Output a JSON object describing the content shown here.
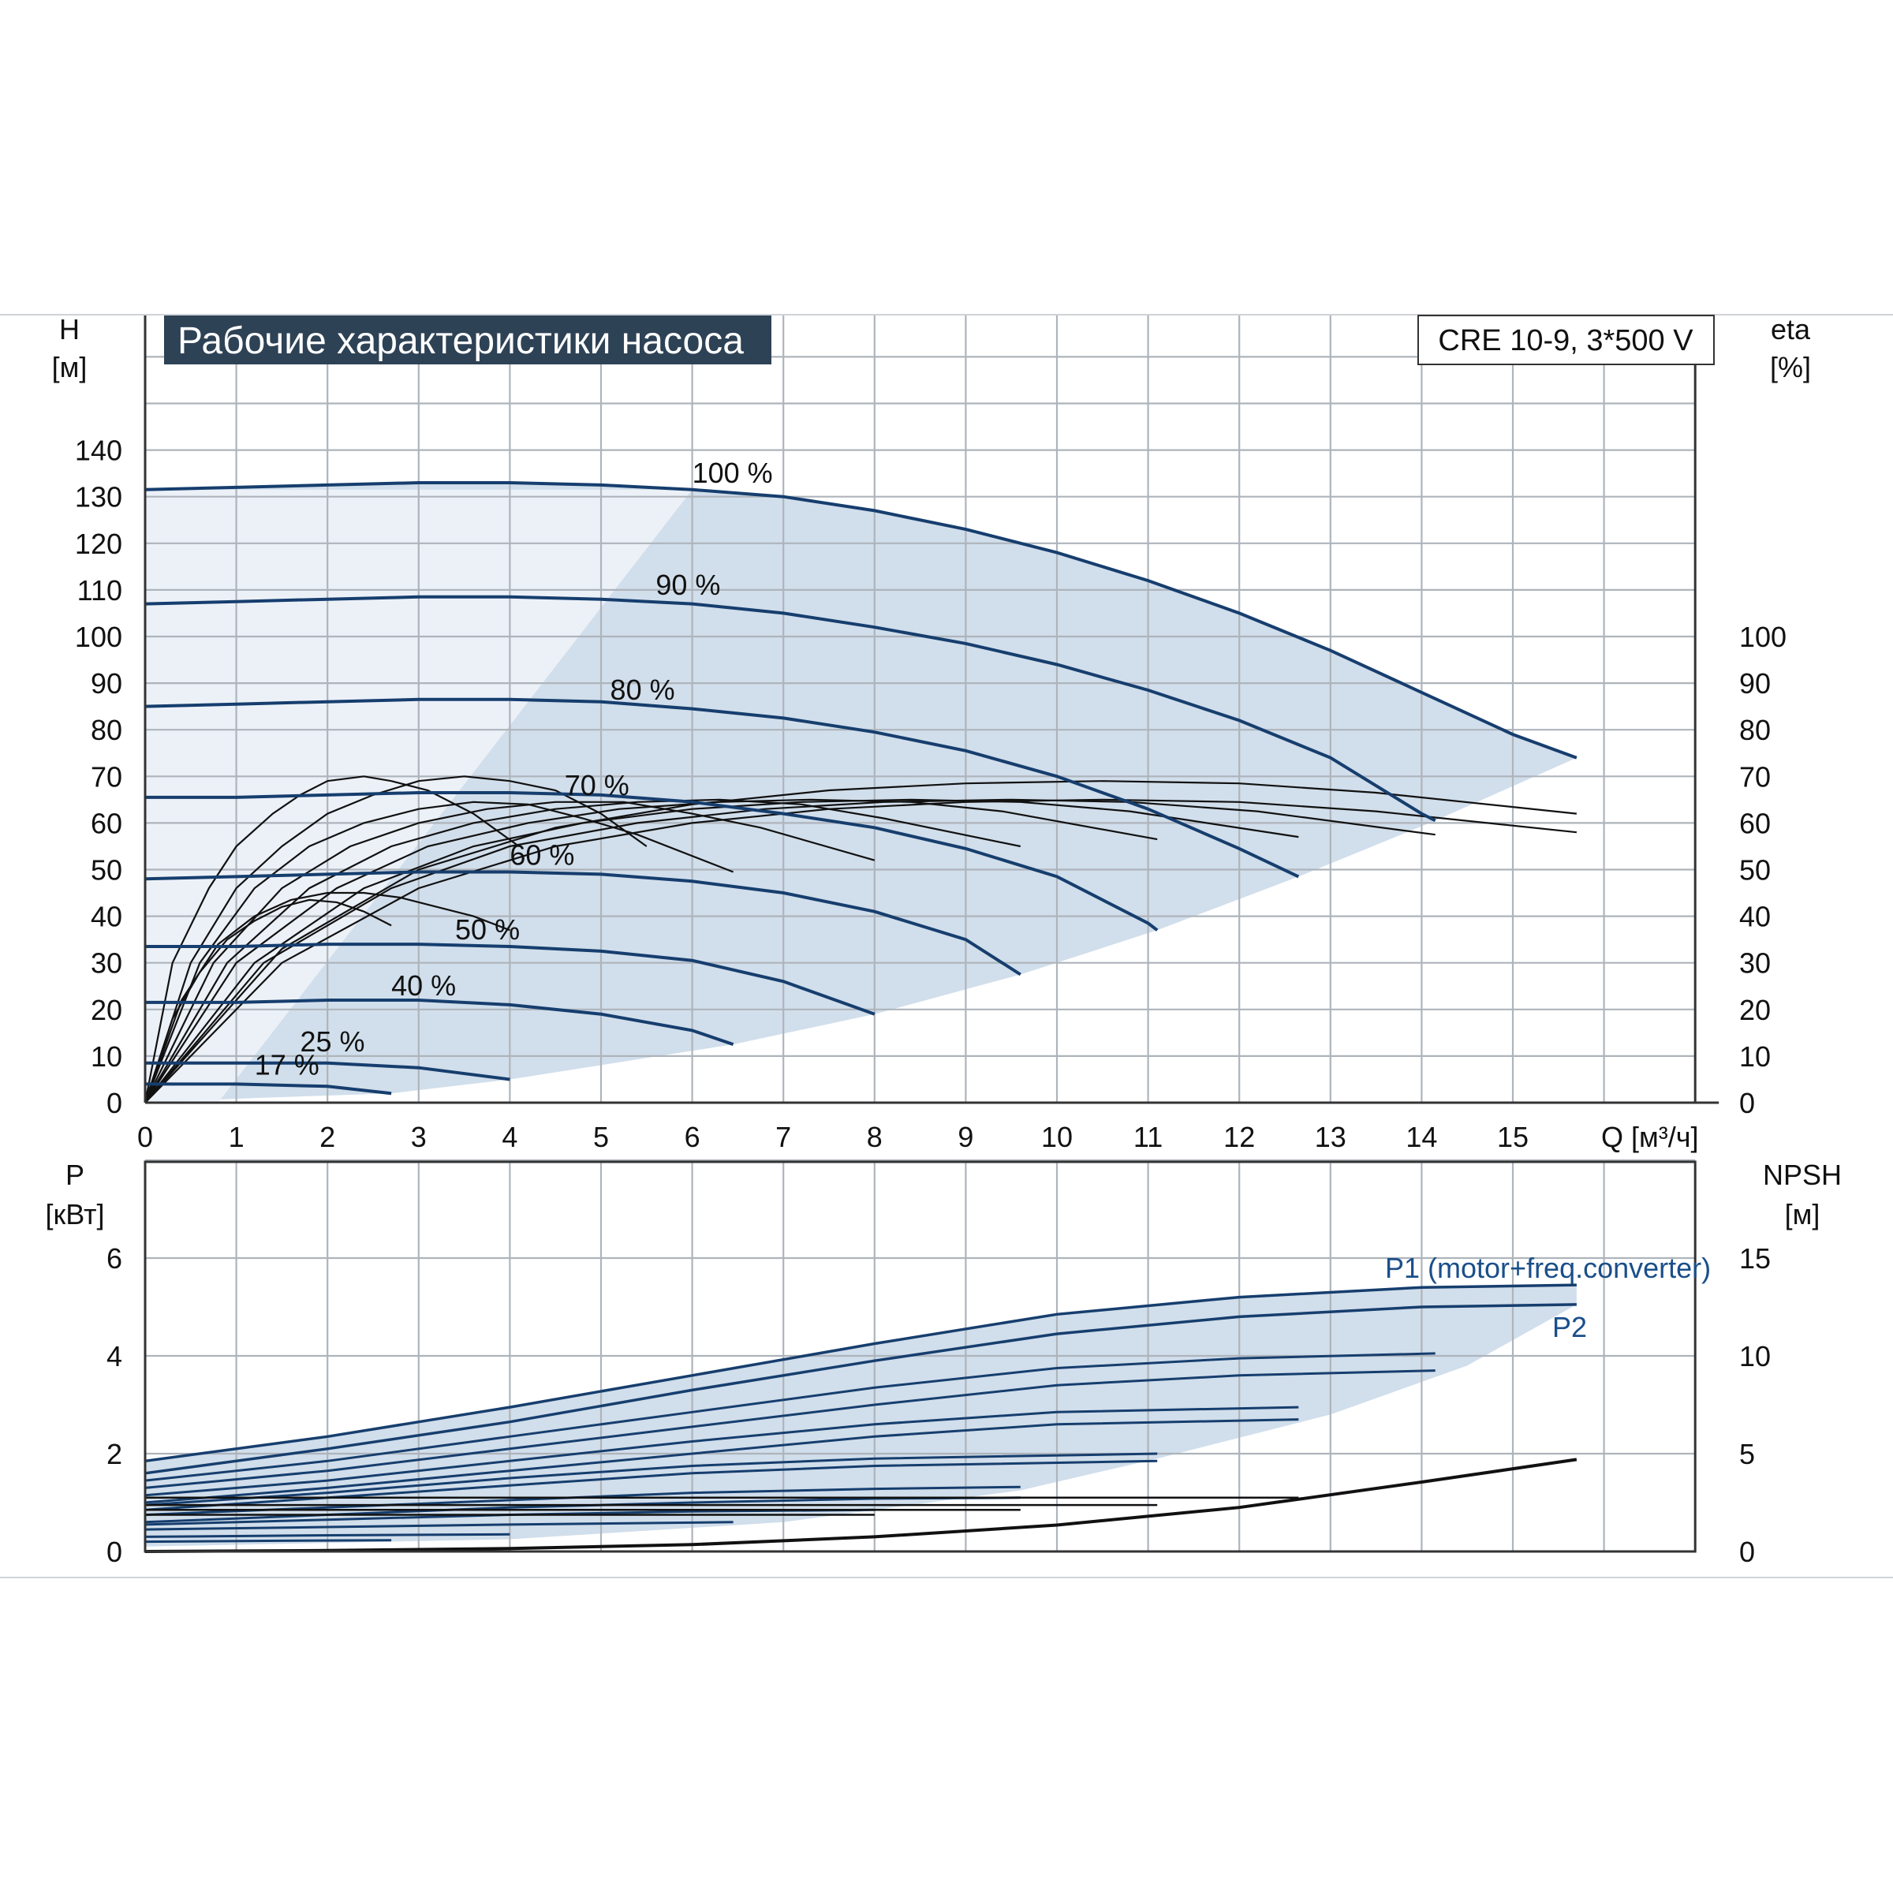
{
  "header": {
    "title": "Рабочие характеристики насоса",
    "model": "CRE 10-9, 3*500 V"
  },
  "colors": {
    "curve": "#163e6e",
    "efficiency": "#111111",
    "band": "#c9d8e8",
    "title_bg": "#2e4256",
    "grid": "#aeb4bb"
  },
  "chart_data": [
    {
      "type": "line",
      "title": "Рабочие характеристики насоса",
      "xlabel": "Q [м³/ч]",
      "ylabel": "H\n[м]",
      "ylabel_parts": [
        "H",
        "[м]"
      ],
      "y2label_parts": [
        "eta",
        "[%]"
      ],
      "xlim": [
        0,
        17
      ],
      "ylim": [
        0,
        170
      ],
      "y2lim": [
        0,
        170
      ],
      "x_ticks": [
        "0",
        "1",
        "2",
        "3",
        "4",
        "5",
        "6",
        "7",
        "8",
        "9",
        "10",
        "11",
        "12",
        "13",
        "14",
        "15"
      ],
      "y_ticks": [
        "0",
        "10",
        "20",
        "30",
        "40",
        "50",
        "60",
        "70",
        "80",
        "90",
        "100",
        "110",
        "120",
        "130",
        "140"
      ],
      "y2_ticks": [
        "0",
        "10",
        "20",
        "30",
        "40",
        "50",
        "60",
        "70",
        "80",
        "90",
        "100"
      ],
      "grid": true,
      "head_curves": [
        {
          "name": "100 %",
          "x": [
            0,
            1,
            2,
            3,
            4,
            5,
            6,
            7,
            8,
            9,
            10,
            11,
            12,
            13,
            14,
            15,
            15.7
          ],
          "y": [
            131.5,
            132,
            132.5,
            133,
            133,
            132.5,
            131.5,
            130,
            127,
            123,
            118,
            112,
            105,
            97,
            88,
            79,
            74
          ]
        },
        {
          "name": "90 %",
          "x": [
            0,
            1,
            2,
            3,
            4,
            5,
            6,
            7,
            8,
            9,
            10,
            11,
            12,
            13,
            14,
            14.15
          ],
          "y": [
            107,
            107.5,
            108,
            108.5,
            108.5,
            108,
            107,
            105,
            102,
            98.5,
            94,
            88.5,
            82,
            74,
            62,
            60.5
          ]
        },
        {
          "name": "80 %",
          "x": [
            0,
            1,
            2,
            3,
            4,
            5,
            6,
            7,
            8,
            9,
            10,
            11,
            12,
            12.65
          ],
          "y": [
            85,
            85.5,
            86,
            86.5,
            86.5,
            86,
            84.5,
            82.5,
            79.5,
            75.5,
            70,
            63,
            54.5,
            48.5
          ]
        },
        {
          "name": "70 %",
          "x": [
            0,
            1,
            2,
            3,
            4,
            5,
            6,
            7,
            8,
            9,
            10,
            11,
            11.1
          ],
          "y": [
            65.5,
            65.5,
            66,
            66.5,
            66.5,
            66,
            64.5,
            62,
            59,
            54.5,
            48.5,
            38.5,
            37
          ]
        },
        {
          "name": "60 %",
          "x": [
            0,
            1,
            2,
            3,
            4,
            5,
            6,
            7,
            8,
            9,
            9.6
          ],
          "y": [
            48,
            48.5,
            49,
            49.5,
            49.5,
            49,
            47.5,
            45,
            41,
            35,
            27.5
          ]
        },
        {
          "name": "50 %",
          "x": [
            0,
            1,
            2,
            3,
            4,
            5,
            6,
            7,
            8
          ],
          "y": [
            33.5,
            33.5,
            34,
            34,
            33.5,
            32.5,
            30.5,
            26,
            19
          ]
        },
        {
          "name": "40 %",
          "x": [
            0,
            1,
            2,
            3,
            4,
            5,
            6,
            6.45
          ],
          "y": [
            21.5,
            21.5,
            22,
            22,
            21,
            19,
            15.5,
            12.5
          ]
        },
        {
          "name": "25 %",
          "x": [
            0,
            1,
            2,
            3,
            4
          ],
          "y": [
            8.5,
            8.5,
            8.5,
            7.5,
            5
          ]
        },
        {
          "name": "17 %",
          "x": [
            0,
            1,
            2,
            2.7
          ],
          "y": [
            4,
            4,
            3.5,
            2
          ]
        }
      ],
      "efficiency_curves": [
        {
          "x": [
            0,
            1.5,
            3,
            4.5,
            6,
            7.5,
            9,
            10.5,
            12,
            13.5,
            15.7
          ],
          "y": [
            0,
            30,
            46,
            55,
            60,
            63,
            64.5,
            65,
            64.5,
            62.5,
            58
          ]
        },
        {
          "x": [
            0,
            1.5,
            3,
            4.5,
            6,
            7.5,
            9,
            10.5,
            12,
            13.5,
            15.7
          ],
          "y": [
            0,
            33,
            50,
            59,
            64,
            67,
            68.5,
            69,
            68.5,
            66.5,
            62
          ]
        },
        {
          "x": [
            0,
            1.3,
            2.7,
            4,
            5.4,
            6.8,
            8.1,
            9.5,
            10.8,
            12.2,
            14.15
          ],
          "y": [
            0,
            30,
            46,
            55,
            60,
            63,
            64.5,
            65,
            64.5,
            62.5,
            57.5
          ]
        },
        {
          "x": [
            0,
            1.2,
            2.4,
            3.6,
            4.8,
            6,
            7.2,
            8.4,
            9.6,
            10.8,
            12.65
          ],
          "y": [
            0,
            30,
            46,
            55,
            60,
            63,
            64.5,
            65,
            64.5,
            62.5,
            57
          ]
        },
        {
          "x": [
            0,
            1,
            2.1,
            3.1,
            4.2,
            5.2,
            6.3,
            7.3,
            8.4,
            9.4,
            11.1
          ],
          "y": [
            0,
            30,
            46,
            55,
            60,
            63,
            64.5,
            65,
            64.5,
            62.5,
            56.5
          ]
        },
        {
          "x": [
            0,
            0.9,
            1.8,
            2.7,
            3.6,
            4.5,
            5.4,
            6.3,
            7.2,
            8.1,
            9.6
          ],
          "y": [
            0,
            30,
            46,
            55,
            60,
            63,
            64.5,
            65,
            64,
            61,
            55
          ]
        },
        {
          "x": [
            0,
            0.75,
            1.5,
            2.25,
            3,
            3.75,
            4.5,
            5.25,
            6,
            6.75,
            8
          ],
          "y": [
            0,
            30,
            46,
            55,
            60,
            63,
            64.5,
            64.5,
            62,
            59,
            52
          ]
        },
        {
          "x": [
            0,
            0.6,
            1.2,
            1.8,
            2.4,
            3,
            3.6,
            4.2,
            4.8,
            5.4,
            6.45
          ],
          "y": [
            0,
            30,
            46,
            55,
            60,
            63,
            64.5,
            64,
            61,
            57.5,
            49.5
          ]
        },
        {
          "x": [
            0,
            0.4,
            0.8,
            1.2,
            1.6,
            2,
            2.4,
            2.8,
            3.2,
            3.6,
            4
          ],
          "y": [
            0,
            22,
            34,
            40,
            43.5,
            45,
            45,
            44,
            42,
            40,
            37
          ]
        },
        {
          "x": [
            0,
            0.3,
            0.6,
            0.9,
            1.2,
            1.5,
            1.8,
            2.1,
            2.4,
            2.7
          ],
          "y": [
            0,
            18,
            28,
            35,
            39,
            42,
            43.5,
            43,
            41,
            38
          ]
        },
        {
          "x": [
            0,
            0.3,
            0.7,
            1,
            1.4,
            1.7,
            2,
            2.4,
            2.7,
            3.1,
            3.6,
            4.1
          ],
          "y": [
            0,
            30,
            46,
            55,
            62,
            66,
            69,
            70,
            69,
            67,
            62,
            55
          ]
        },
        {
          "x": [
            0,
            0.5,
            1,
            1.5,
            2,
            2.5,
            3,
            3.5,
            4,
            4.5,
            5,
            5.5
          ],
          "y": [
            0,
            30,
            46,
            55,
            62,
            66,
            69,
            70,
            69,
            67,
            62,
            55
          ]
        }
      ]
    },
    {
      "type": "line",
      "xlabel": "",
      "ylabel_parts": [
        "P",
        "[кВт]"
      ],
      "y2label_parts": [
        "NPSH",
        "[м]"
      ],
      "xlim": [
        0,
        17
      ],
      "ylim": [
        0,
        8
      ],
      "y2lim": [
        0,
        20
      ],
      "y_ticks": [
        "0",
        "2",
        "4",
        "6"
      ],
      "y2_ticks": [
        "0",
        "5",
        "10",
        "15"
      ],
      "grid": true,
      "labels": {
        "p1": "P1 (motor+freq.converter)",
        "p2": "P2"
      },
      "power_curves": [
        {
          "name": "P1 (motor+freq.converter)",
          "x": [
            0,
            2,
            4,
            6,
            8,
            10,
            12,
            14,
            15.7
          ],
          "y": [
            1.85,
            2.35,
            2.95,
            3.6,
            4.25,
            4.85,
            5.2,
            5.4,
            5.45
          ]
        },
        {
          "name": "P2",
          "x": [
            0,
            2,
            4,
            6,
            8,
            10,
            12,
            14,
            15.7
          ],
          "y": [
            1.6,
            2.1,
            2.65,
            3.3,
            3.9,
            4.45,
            4.8,
            5.0,
            5.05
          ]
        },
        {
          "x": [
            0,
            2,
            4,
            6,
            8,
            10,
            12,
            14.15
          ],
          "y": [
            1.45,
            1.85,
            2.35,
            2.85,
            3.35,
            3.75,
            3.95,
            4.05
          ]
        },
        {
          "x": [
            0,
            2,
            4,
            6,
            8,
            10,
            12,
            14.15
          ],
          "y": [
            1.3,
            1.65,
            2.1,
            2.55,
            3.0,
            3.4,
            3.6,
            3.7
          ]
        },
        {
          "x": [
            0,
            2,
            4,
            6,
            8,
            10,
            12.65
          ],
          "y": [
            1.15,
            1.45,
            1.85,
            2.25,
            2.6,
            2.85,
            2.95
          ]
        },
        {
          "x": [
            0,
            2,
            4,
            6,
            8,
            10,
            12.65
          ],
          "y": [
            1.0,
            1.3,
            1.65,
            2.0,
            2.35,
            2.6,
            2.7
          ]
        },
        {
          "x": [
            0,
            2,
            4,
            6,
            8,
            11.1
          ],
          "y": [
            0.95,
            1.2,
            1.5,
            1.75,
            1.9,
            2.0
          ]
        },
        {
          "x": [
            0,
            2,
            4,
            6,
            8,
            11.1
          ],
          "y": [
            0.85,
            1.1,
            1.35,
            1.6,
            1.75,
            1.85
          ]
        },
        {
          "x": [
            0,
            2,
            4,
            6,
            8,
            9.6
          ],
          "y": [
            0.75,
            0.9,
            1.05,
            1.2,
            1.28,
            1.32
          ]
        },
        {
          "x": [
            0,
            2,
            4,
            6,
            8,
            9.6
          ],
          "y": [
            0.6,
            0.75,
            0.9,
            1.0,
            1.08,
            1.1
          ]
        },
        {
          "x": [
            0,
            2,
            4,
            6,
            8
          ],
          "y": [
            0.55,
            0.65,
            0.75,
            0.82,
            0.85
          ]
        },
        {
          "x": [
            0,
            2,
            4,
            6.45
          ],
          "y": [
            0.45,
            0.5,
            0.55,
            0.6
          ]
        },
        {
          "x": [
            0,
            2,
            4
          ],
          "y": [
            0.3,
            0.33,
            0.35
          ]
        },
        {
          "x": [
            0,
            1.5,
            2.7
          ],
          "y": [
            0.2,
            0.22,
            0.23
          ]
        }
      ],
      "npsh_curve": {
        "x": [
          0,
          2,
          4,
          6,
          8,
          10,
          12,
          14,
          15.7
        ],
        "y": [
          0.0,
          0.05,
          0.15,
          0.35,
          0.75,
          1.35,
          2.25,
          3.55,
          4.7
        ]
      },
      "flat_black_lines": [
        {
          "x": [
            0,
            12.65
          ],
          "y": [
            1.1,
            1.1
          ]
        },
        {
          "x": [
            0,
            11.1
          ],
          "y": [
            0.95,
            0.95
          ]
        },
        {
          "x": [
            0,
            9.6
          ],
          "y": [
            0.85,
            0.85
          ]
        },
        {
          "x": [
            0,
            8
          ],
          "y": [
            0.75,
            0.75
          ]
        }
      ]
    }
  ],
  "top_labels": [
    {
      "text": "100 %",
      "x": 6.0,
      "y": 133
    },
    {
      "text": "90 %",
      "x": 5.6,
      "y": 109
    },
    {
      "text": "80 %",
      "x": 5.1,
      "y": 86.5
    },
    {
      "text": "70 %",
      "x": 4.6,
      "y": 66
    },
    {
      "text": "60 %",
      "x": 4.0,
      "y": 51
    },
    {
      "text": "50 %",
      "x": 3.4,
      "y": 35
    },
    {
      "text": "40 %",
      "x": 2.7,
      "y": 23
    },
    {
      "text": "25 %",
      "x": 1.7,
      "y": 11
    },
    {
      "text": "17 %",
      "x": 1.2,
      "y": 6
    }
  ]
}
